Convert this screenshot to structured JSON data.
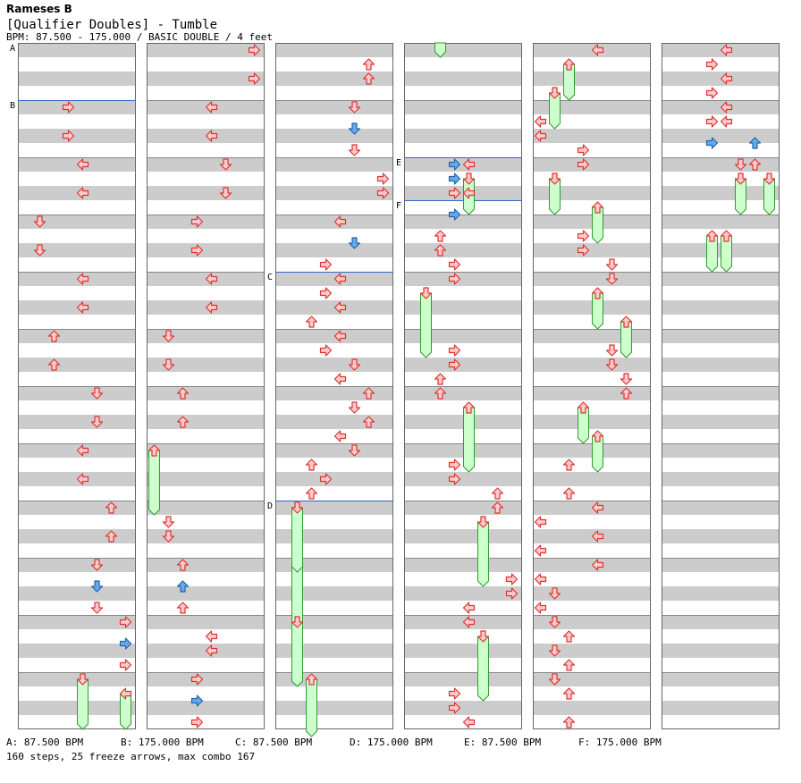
{
  "header": {
    "title": "Rameses B",
    "subtitle": "[Qualifier Doubles] - Tumble",
    "info": "BPM: 87.500 - 175.000 / BASIC DOUBLE / 4 feet"
  },
  "markers": [
    "A",
    "B",
    "C",
    "D",
    "E",
    "F"
  ],
  "legend": [
    {
      "label": "A: 87.500 BPM"
    },
    {
      "label": "B: 175.000 BPM"
    },
    {
      "label": "C: 87.500 BPM"
    },
    {
      "label": "D: 175.000 BPM"
    },
    {
      "label": "E: 87.500 BPM"
    },
    {
      "label": "F: 175.000 BPM"
    }
  ],
  "stats": "160 steps, 25 freeze arrows, max combo 167",
  "colors": {
    "stripe_gray": "#cccccc",
    "border": "#666666",
    "bpm_line": "#3366cc",
    "arrow_red_fill": "#ffcccc",
    "arrow_red_stroke": "#dd3333",
    "arrow_blue_fill": "#66aaee",
    "arrow_blue_stroke": "#2266aa",
    "freeze_fill": "#ccffcc",
    "freeze_stroke": "#339933"
  },
  "icons": [
    "arrow-left-icon",
    "arrow-down-icon",
    "arrow-up-icon",
    "arrow-right-icon",
    "freeze-arrow-icon"
  ]
}
